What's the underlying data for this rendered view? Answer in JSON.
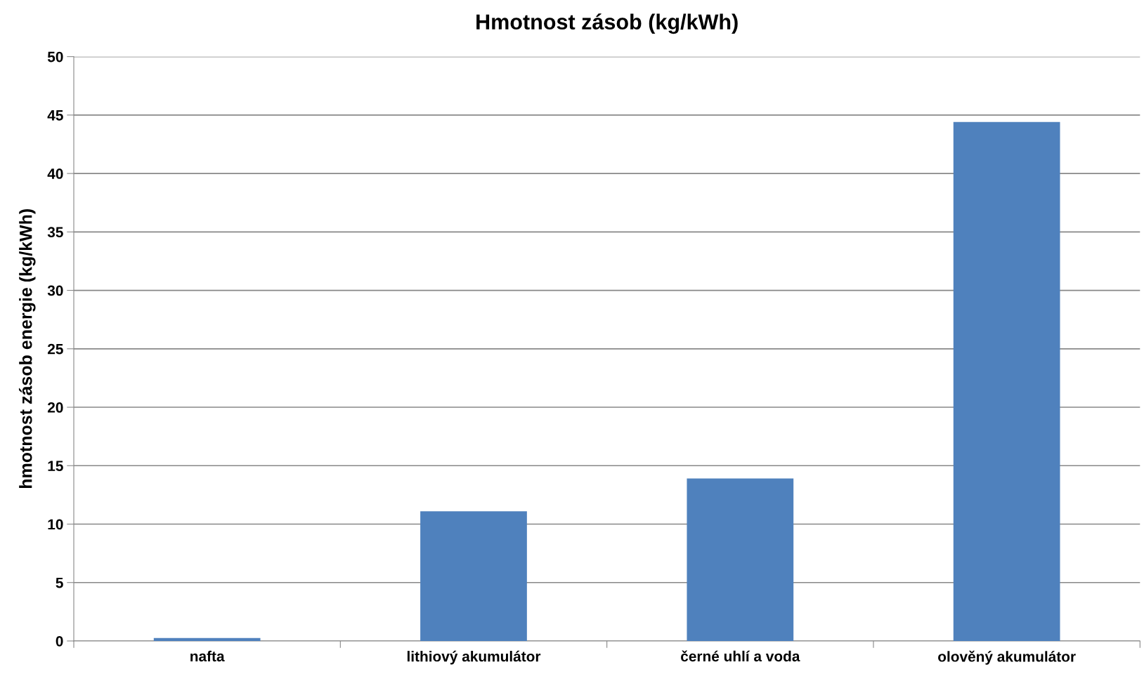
{
  "chart_data": {
    "type": "bar",
    "title": "Hmotnost zásob (kg/kWh)",
    "ylabel": "hmotnost zásob energie (kg/kWh)",
    "categories": [
      "nafta",
      "lithiový akumulátor",
      "černé uhlí a voda",
      "olověný akumulátor"
    ],
    "values": [
      0.25,
      11.1,
      13.9,
      44.4
    ],
    "color": "#4f81bd",
    "ylim": [
      0,
      50
    ],
    "yticks": [
      0,
      5,
      10,
      15,
      20,
      25,
      30,
      35,
      40,
      45,
      50
    ],
    "grid": "y",
    "legend": false
  }
}
